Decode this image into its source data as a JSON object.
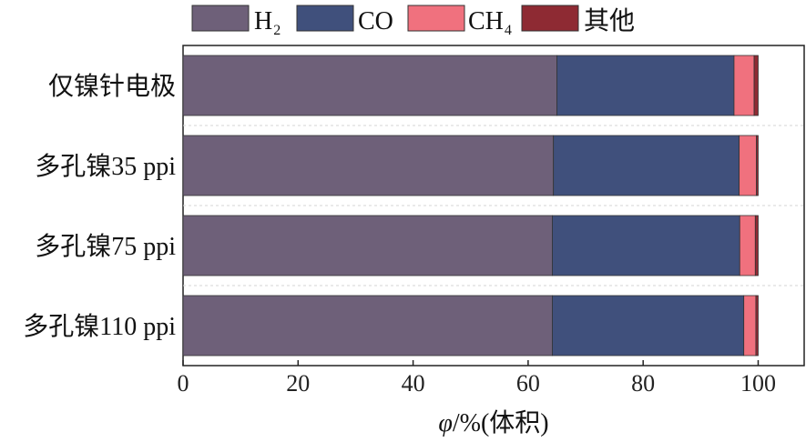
{
  "chart_data": {
    "type": "bar",
    "orientation": "horizontal",
    "stacked": true,
    "categories": [
      "仅镍针电极",
      "多孔镍35 ppi",
      "多孔镍75 ppi",
      "多孔镍110 ppi"
    ],
    "series": [
      {
        "name": "H",
        "name_sub": "2",
        "values": [
          65.0,
          64.4,
          64.2,
          64.2
        ],
        "color": "#6e6079"
      },
      {
        "name": "CO",
        "name_sub": "",
        "values": [
          30.8,
          32.3,
          32.6,
          33.3
        ],
        "color": "#40507c"
      },
      {
        "name": "CH",
        "name_sub": "4",
        "values": [
          3.5,
          3.0,
          2.7,
          2.1
        ],
        "color": "#f0717e"
      },
      {
        "name": "其他",
        "name_sub": "",
        "values": [
          0.7,
          0.3,
          0.5,
          0.4
        ],
        "color": "#8e2a33"
      }
    ],
    "xlabel_symbol": "φ",
    "xlabel_rest": "/%(体积)",
    "xlim": [
      0,
      108
    ],
    "xticks": [
      "0",
      "20",
      "40",
      "60",
      "80",
      "100"
    ],
    "grid": false,
    "legend_position": "top",
    "title": ""
  }
}
